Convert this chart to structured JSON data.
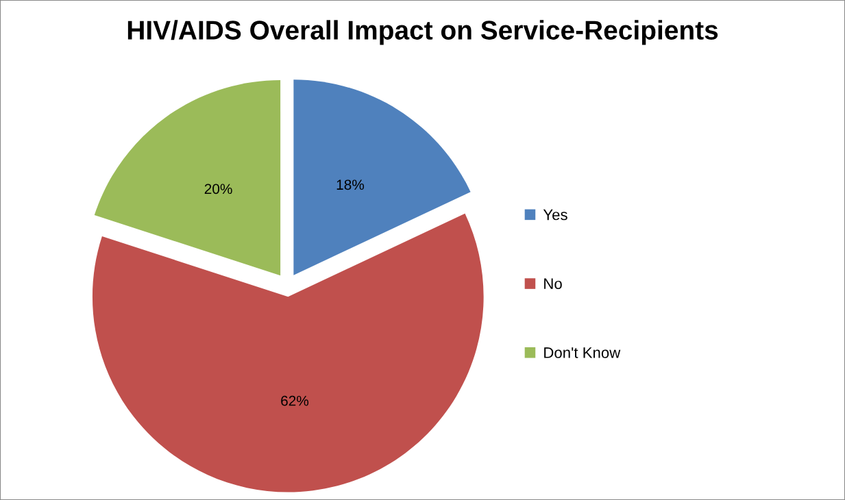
{
  "chart_data": {
    "type": "pie",
    "title": "HIV/AIDS Overall Impact on Service-Recipients",
    "categories": [
      "Yes",
      "No",
      "Don't Know"
    ],
    "values": [
      18,
      62,
      20
    ],
    "colors": [
      "#4f81bd",
      "#c0504d",
      "#9bbb59"
    ],
    "value_labels": [
      "18%",
      "62%",
      "20%"
    ],
    "legend": "right"
  }
}
